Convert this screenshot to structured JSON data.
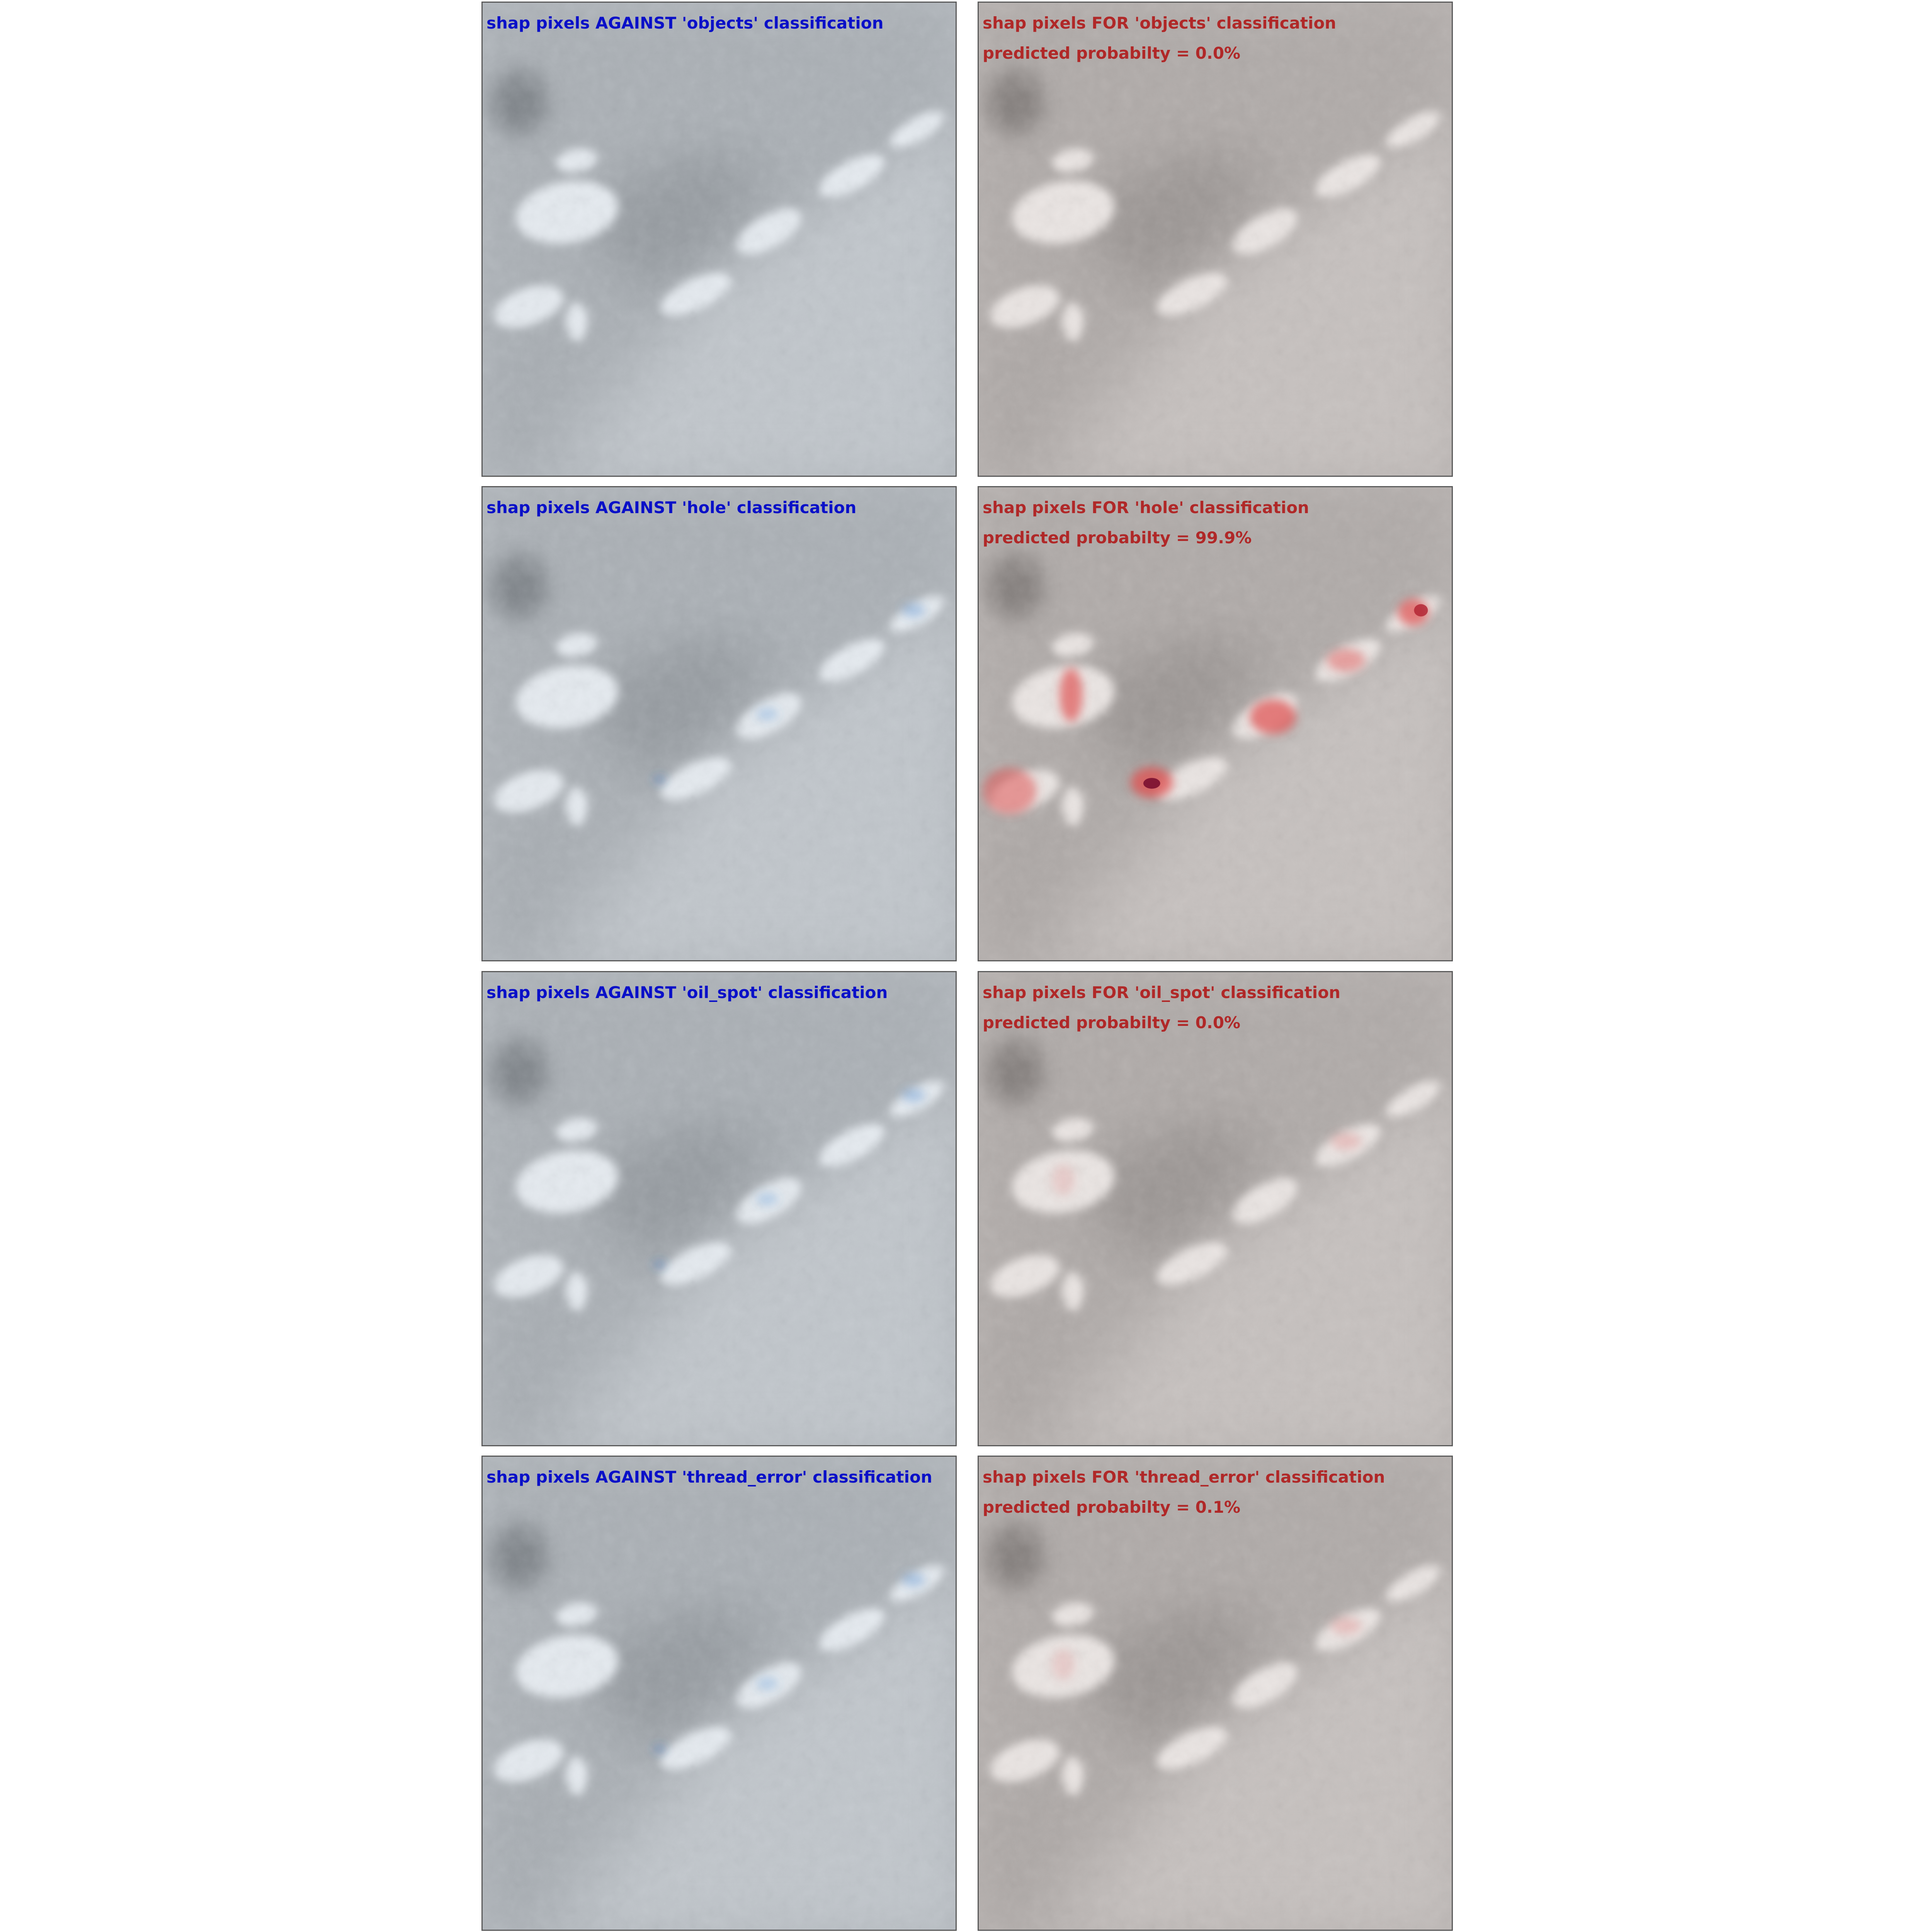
{
  "colors": {
    "against_text": "#0a10c8",
    "for_text": "#b02828",
    "against_tint": "#c8d6e4",
    "for_tint": "#d8c8c4",
    "frame": "#5a5a5a",
    "background": "#ffffff"
  },
  "rows": [
    {
      "against_label": "shap pixels AGAINST 'objects' classification",
      "for_label": "shap pixels FOR 'objects' classification",
      "probability_label": "predicted probabilty = 0.0%",
      "predicted_probability_percent": 0.0,
      "shap_highlight": "none"
    },
    {
      "against_label": "shap pixels AGAINST 'hole' classification",
      "for_label": "shap pixels FOR 'hole' classification",
      "probability_label": "predicted probabilty = 99.9%",
      "predicted_probability_percent": 99.9,
      "shap_highlight": "strong"
    },
    {
      "against_label": "shap pixels AGAINST 'oil_spot' classification",
      "for_label": "shap pixels FOR 'oil_spot' classification",
      "probability_label": "predicted probabilty = 0.0%",
      "predicted_probability_percent": 0.0,
      "shap_highlight": "weak"
    },
    {
      "against_label": "shap pixels AGAINST 'thread_error' classification",
      "for_label": "shap pixels FOR 'thread_error' classification",
      "probability_label": "predicted probabilty = 0.1%",
      "predicted_probability_percent": 0.1,
      "shap_highlight": "weak"
    }
  ]
}
